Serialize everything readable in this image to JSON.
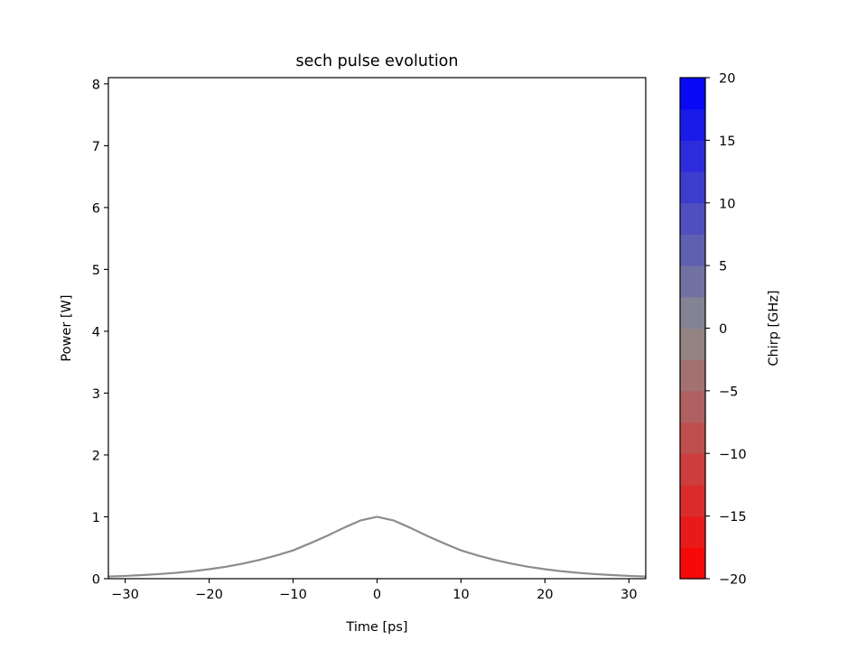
{
  "chart_data": {
    "type": "line",
    "title": "sech pulse evolution",
    "xlabel": "Time [ps]",
    "ylabel": "Power [W]",
    "xlim": [
      -32,
      32
    ],
    "ylim": [
      0,
      8.1
    ],
    "x_ticks": [
      -30,
      -20,
      -10,
      0,
      10,
      20,
      30
    ],
    "x_tick_labels": [
      "−30",
      "−20",
      "−10",
      "0",
      "10",
      "20",
      "30"
    ],
    "y_ticks": [
      0,
      1,
      2,
      3,
      4,
      5,
      6,
      7,
      8
    ],
    "y_tick_labels": [
      "0",
      "1",
      "2",
      "3",
      "4",
      "5",
      "6",
      "7",
      "8"
    ],
    "grid": false,
    "series": [
      {
        "color": "#8c8c8c",
        "x": [
          -32,
          -30,
          -28,
          -26,
          -24,
          -22,
          -20,
          -18,
          -16,
          -14,
          -12,
          -10,
          -8,
          -6,
          -4,
          -2,
          0,
          2,
          4,
          6,
          8,
          10,
          12,
          14,
          16,
          18,
          20,
          22,
          24,
          26,
          28,
          30,
          32
        ],
        "y": [
          0.035,
          0.045,
          0.058,
          0.074,
          0.094,
          0.12,
          0.153,
          0.193,
          0.243,
          0.304,
          0.375,
          0.457,
          0.57,
          0.69,
          0.82,
          0.94,
          1.0,
          0.94,
          0.82,
          0.69,
          0.57,
          0.457,
          0.375,
          0.304,
          0.243,
          0.193,
          0.153,
          0.12,
          0.094,
          0.074,
          0.058,
          0.045,
          0.035
        ]
      }
    ],
    "colorbar": {
      "label": "Chirp [GHz]",
      "range": [
        -20,
        20
      ],
      "ticks": [
        -20,
        -15,
        -10,
        -5,
        0,
        5,
        10,
        15,
        20
      ],
      "tick_labels": [
        "−20",
        "−15",
        "−10",
        "−5",
        "0",
        "5",
        "10",
        "15",
        "20"
      ],
      "levels": 16,
      "colors": [
        "#ff0000",
        "#8c8c8c",
        "#0000ff"
      ]
    }
  }
}
